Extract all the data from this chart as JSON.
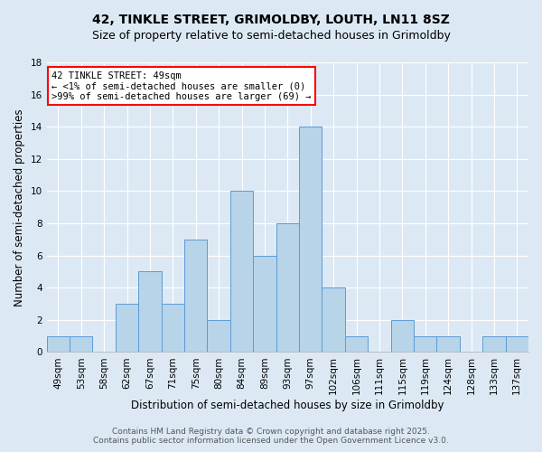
{
  "title": "42, TINKLE STREET, GRIMOLDBY, LOUTH, LN11 8SZ",
  "subtitle": "Size of property relative to semi-detached houses in Grimoldby",
  "xlabel": "Distribution of semi-detached houses by size in Grimoldby",
  "ylabel": "Number of semi-detached properties",
  "bar_color": "#b8d4e8",
  "bar_edge_color": "#5b9bd5",
  "background_color": "#dce9f5",
  "categories": [
    "49sqm",
    "53sqm",
    "58sqm",
    "62sqm",
    "67sqm",
    "71sqm",
    "75sqm",
    "80sqm",
    "84sqm",
    "89sqm",
    "93sqm",
    "97sqm",
    "102sqm",
    "106sqm",
    "111sqm",
    "115sqm",
    "119sqm",
    "124sqm",
    "128sqm",
    "133sqm",
    "137sqm"
  ],
  "values": [
    1,
    1,
    0,
    3,
    5,
    3,
    7,
    2,
    10,
    6,
    8,
    14,
    4,
    1,
    0,
    2,
    1,
    1,
    0,
    1,
    1
  ],
  "ylim": [
    0,
    18
  ],
  "yticks": [
    0,
    2,
    4,
    6,
    8,
    10,
    12,
    14,
    16,
    18
  ],
  "annotation_title": "42 TINKLE STREET: 49sqm",
  "annotation_line1": "← <1% of semi-detached houses are smaller (0)",
  "annotation_line2": ">99% of semi-detached houses are larger (69) →",
  "footer_line1": "Contains HM Land Registry data © Crown copyright and database right 2025.",
  "footer_line2": "Contains public sector information licensed under the Open Government Licence v3.0.",
  "grid_color": "#ffffff",
  "title_fontsize": 10,
  "subtitle_fontsize": 9,
  "axis_label_fontsize": 8.5,
  "tick_fontsize": 7.5,
  "annotation_fontsize": 7.5,
  "footer_fontsize": 6.5
}
